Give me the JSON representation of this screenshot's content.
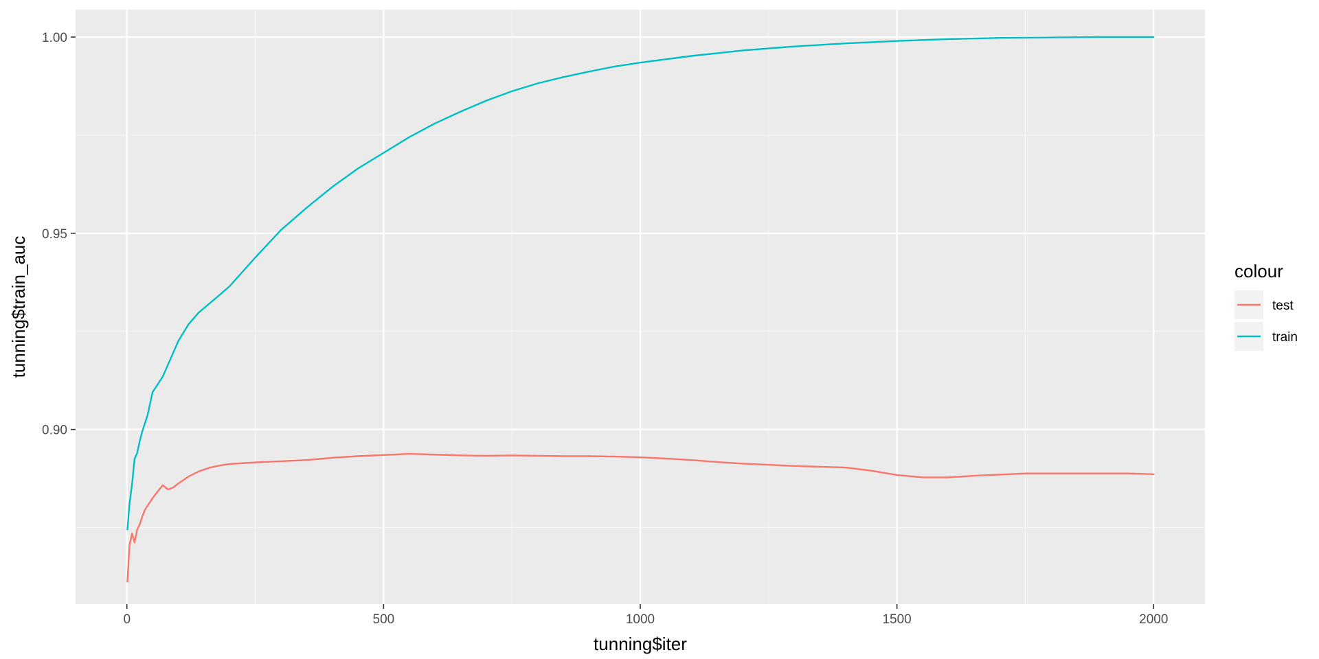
{
  "chart_data": {
    "type": "line",
    "title": "",
    "xlabel": "tunning$iter",
    "ylabel": "tunning$train_auc",
    "xlim": [
      -100,
      2100
    ],
    "ylim": [
      0.8555,
      1.007
    ],
    "x_ticks": [
      0,
      500,
      1000,
      1500,
      2000
    ],
    "x_tick_labels": [
      "0",
      "500",
      "1000",
      "1500",
      "2000"
    ],
    "y_ticks": [
      0.9,
      0.95,
      1.0
    ],
    "y_tick_labels": [
      "0.90",
      "0.95",
      "1.00"
    ],
    "grid": true,
    "legend": {
      "title": "colour",
      "position": "right"
    },
    "series": [
      {
        "name": "test",
        "color": "#F8766D",
        "x": [
          1,
          5,
          10,
          15,
          20,
          25,
          30,
          35,
          40,
          50,
          60,
          70,
          80,
          90,
          100,
          120,
          140,
          160,
          180,
          200,
          250,
          300,
          350,
          400,
          450,
          500,
          550,
          600,
          650,
          700,
          750,
          800,
          850,
          900,
          950,
          1000,
          1050,
          1100,
          1150,
          1200,
          1250,
          1300,
          1350,
          1400,
          1450,
          1500,
          1550,
          1600,
          1650,
          1700,
          1750,
          1800,
          1850,
          1900,
          1950,
          2000
        ],
        "y": [
          0.8612,
          0.8705,
          0.8735,
          0.8712,
          0.8745,
          0.8758,
          0.8778,
          0.8795,
          0.8805,
          0.8825,
          0.8842,
          0.8858,
          0.8847,
          0.8852,
          0.8862,
          0.888,
          0.8893,
          0.8902,
          0.8908,
          0.8912,
          0.8916,
          0.8919,
          0.8922,
          0.8928,
          0.8932,
          0.8935,
          0.8938,
          0.8936,
          0.8934,
          0.8933,
          0.8934,
          0.8933,
          0.8932,
          0.8932,
          0.8931,
          0.8929,
          0.8926,
          0.8922,
          0.8917,
          0.8913,
          0.891,
          0.8907,
          0.8905,
          0.8903,
          0.8895,
          0.8884,
          0.8878,
          0.8878,
          0.8882,
          0.8885,
          0.8888,
          0.8888,
          0.8888,
          0.8888,
          0.8888,
          0.8886
        ]
      },
      {
        "name": "train",
        "color": "#00BFC4",
        "x": [
          1,
          5,
          10,
          15,
          20,
          25,
          30,
          40,
          50,
          60,
          70,
          80,
          90,
          100,
          120,
          140,
          160,
          180,
          200,
          250,
          300,
          350,
          400,
          450,
          500,
          550,
          600,
          650,
          700,
          750,
          800,
          850,
          900,
          950,
          1000,
          1100,
          1200,
          1300,
          1400,
          1500,
          1600,
          1700,
          1800,
          1900,
          2000
        ],
        "y": [
          0.8745,
          0.881,
          0.886,
          0.8925,
          0.894,
          0.897,
          0.8995,
          0.9035,
          0.9095,
          0.9115,
          0.9135,
          0.9165,
          0.9195,
          0.9225,
          0.9268,
          0.9298,
          0.932,
          0.9342,
          0.9365,
          0.9438,
          0.9508,
          0.9565,
          0.9618,
          0.9665,
          0.9705,
          0.9745,
          0.978,
          0.981,
          0.9838,
          0.9862,
          0.9882,
          0.9898,
          0.9912,
          0.9925,
          0.9935,
          0.9952,
          0.9966,
          0.9976,
          0.9984,
          0.999,
          0.9995,
          0.9998,
          0.9999,
          1.0,
          1.0
        ]
      }
    ]
  }
}
